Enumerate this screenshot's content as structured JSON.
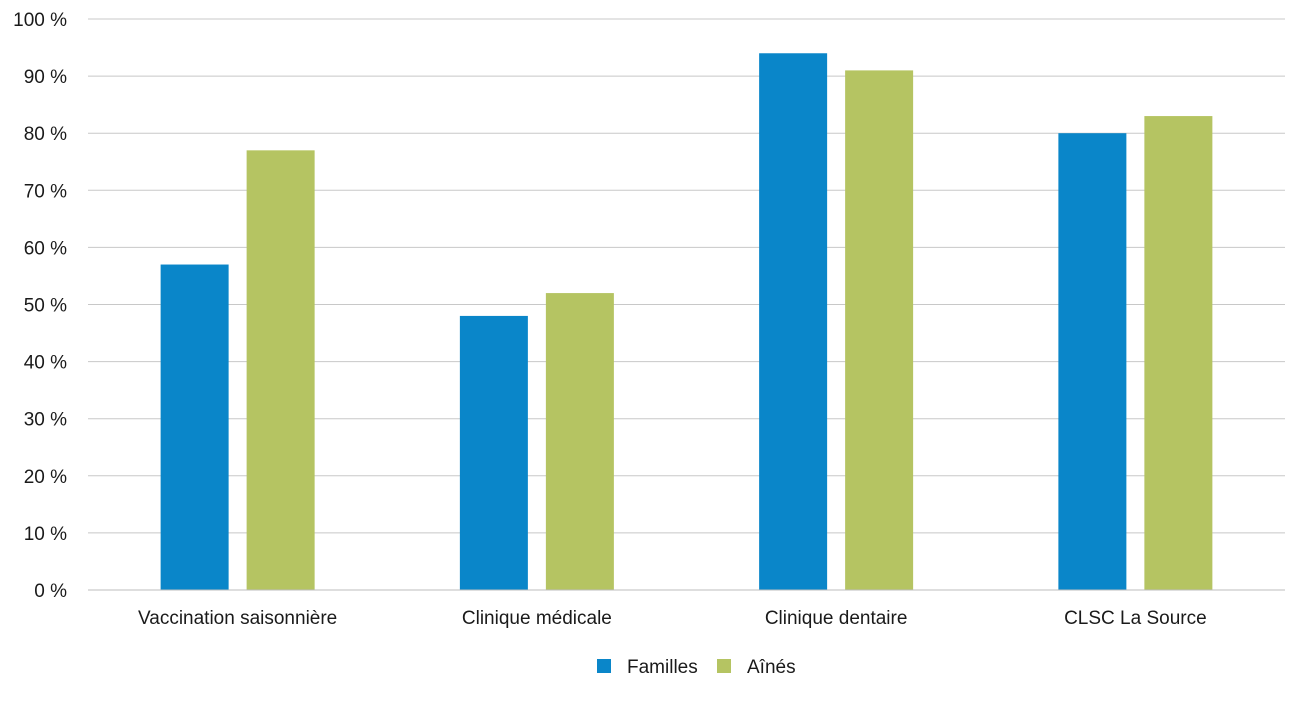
{
  "chart_data": {
    "type": "bar",
    "title": "",
    "xlabel": "",
    "ylabel": "",
    "categories": [
      "Vaccination saisonnière",
      "Clinique médicale",
      "Clinique dentaire",
      "CLSC La Source"
    ],
    "series": [
      {
        "name": "Familles",
        "color": "#0a86c9",
        "values": [
          57,
          48,
          94,
          80
        ]
      },
      {
        "name": "Aînés",
        "color": "#b5c462",
        "values": [
          77,
          52,
          91,
          83
        ]
      }
    ],
    "ylim": [
      0,
      100
    ],
    "yticks": [
      0,
      10,
      20,
      30,
      40,
      50,
      60,
      70,
      80,
      90,
      100
    ],
    "ytick_labels": [
      "0 %",
      "10 %",
      "20 %",
      "30 %",
      "40 %",
      "50 %",
      "60 %",
      "70 %",
      "80 %",
      "90 %",
      "100 %"
    ],
    "grid": true,
    "legend_position": "bottom-center"
  }
}
